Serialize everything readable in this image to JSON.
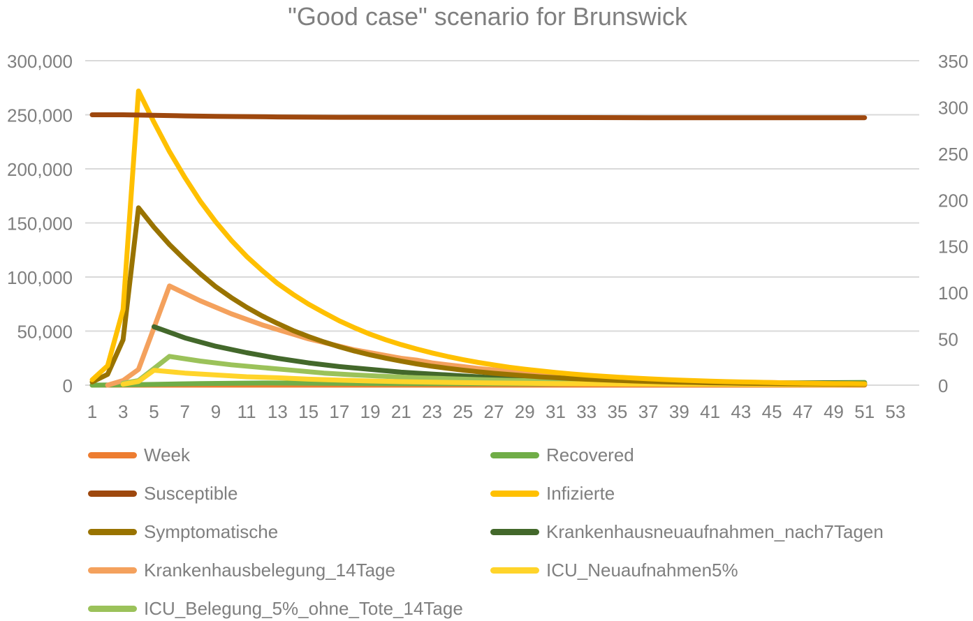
{
  "chart_data": {
    "type": "line",
    "title": "\"Good case\" scenario for Brunswick",
    "x_ticks": [
      "1",
      "3",
      "5",
      "7",
      "9",
      "11",
      "13",
      "15",
      "17",
      "19",
      "21",
      "23",
      "25",
      "27",
      "29",
      "31",
      "33",
      "35",
      "37",
      "39",
      "41",
      "43",
      "45",
      "47",
      "49",
      "51",
      "53"
    ],
    "x_range": [
      1,
      53
    ],
    "y_left": {
      "min": 0,
      "max": 300000,
      "ticks": [
        "0",
        "50,000",
        "100,000",
        "150,000",
        "200,000",
        "250,000",
        "300,000"
      ]
    },
    "y_right": {
      "min": 0,
      "max": 350,
      "ticks": [
        "0",
        "50",
        "100",
        "150",
        "200",
        "250",
        "300",
        "350"
      ]
    },
    "grid": true,
    "legend_position": "bottom",
    "series": [
      {
        "name": "Week",
        "color": "#ed7d31",
        "axis": "left",
        "x": [
          1,
          51
        ],
        "y": [
          0,
          0
        ]
      },
      {
        "name": "Recovered",
        "color": "#70ad47",
        "axis": "left",
        "x": [
          1,
          4,
          8,
          12,
          20,
          30,
          40,
          51
        ],
        "y": [
          0,
          500,
          1500,
          2000,
          1500,
          1200,
          1500,
          2500
        ]
      },
      {
        "name": "Susceptible",
        "color": "#9e480e",
        "axis": "left",
        "x": [
          1,
          3,
          5,
          7,
          9,
          11,
          13,
          17,
          21,
          25,
          29,
          33,
          37,
          41,
          45,
          49,
          51
        ],
        "y": [
          250000,
          250000,
          249500,
          249000,
          248600,
          248300,
          248000,
          247700,
          247600,
          247500,
          247500,
          247400,
          247300,
          247300,
          247300,
          247300,
          247300
        ]
      },
      {
        "name": "Infizierte",
        "color": "#ffc000",
        "axis": "left",
        "x": [
          1,
          2,
          3,
          4,
          5,
          6,
          7,
          8,
          9,
          10,
          11,
          12,
          13,
          14,
          15,
          16,
          17,
          18,
          19,
          20,
          21,
          22,
          23,
          24,
          25,
          26,
          27,
          28,
          29,
          30,
          31,
          32,
          33,
          34,
          35,
          36,
          37,
          38,
          39,
          40,
          41,
          42,
          43,
          44,
          45,
          46,
          47,
          48,
          49,
          50,
          51
        ],
        "y": [
          5000,
          18000,
          70000,
          272000,
          243000,
          216000,
          192000,
          170000,
          151000,
          134000,
          119000,
          106000,
          94000,
          84000,
          75000,
          67000,
          59500,
          53000,
          47000,
          42000,
          37500,
          33500,
          29800,
          26500,
          23600,
          21000,
          18700,
          16600,
          14800,
          13200,
          11700,
          10400,
          9300,
          8300,
          7400,
          6600,
          5900,
          5200,
          4700,
          4200,
          3700,
          3300,
          3000,
          2700,
          2400,
          2100,
          1900,
          1700,
          1500,
          1400,
          1300
        ]
      },
      {
        "name": "Symptomatische",
        "color": "#997300",
        "axis": "left",
        "x": [
          1,
          2,
          3,
          4,
          5,
          6,
          7,
          8,
          9,
          10,
          11,
          12,
          13,
          14,
          15,
          16,
          17,
          18,
          19,
          20,
          21,
          22,
          23,
          24,
          25,
          26,
          27,
          28,
          29,
          30,
          31,
          32,
          33,
          34,
          35,
          36,
          37,
          38,
          39,
          40,
          41,
          42,
          43,
          44,
          45,
          46,
          47,
          48,
          49,
          50,
          51
        ],
        "y": [
          3000,
          10000,
          42000,
          164000,
          146000,
          130000,
          116000,
          103000,
          91000,
          81000,
          72000,
          64000,
          57000,
          50500,
          45000,
          40000,
          35500,
          31500,
          28000,
          25000,
          22200,
          19700,
          17500,
          15600,
          13900,
          12400,
          11000,
          9800,
          8700,
          7700,
          6900,
          6100,
          5500,
          4900,
          4400,
          3900,
          3500,
          3100,
          2800,
          2500,
          2200,
          2000,
          1800,
          1600,
          1400,
          1300,
          1200,
          1100,
          1000,
          900,
          800
        ]
      },
      {
        "name": "Krankenhausneuaufnahmen_nach7Tagen",
        "color": "#43682b",
        "axis": "right",
        "x": [
          5,
          7,
          9,
          11,
          13,
          15,
          17,
          19,
          21,
          23,
          25,
          27,
          29,
          31,
          33,
          35,
          37,
          39,
          41,
          43,
          45,
          47,
          49,
          51
        ],
        "y": [
          63,
          51,
          42,
          35,
          29,
          24,
          20,
          17,
          14,
          12,
          10,
          8,
          7,
          6,
          5,
          4.5,
          4,
          3.5,
          3,
          3,
          2.5,
          2.5,
          2.5,
          2
        ]
      },
      {
        "name": "Krankenhausbelegung_14Tage",
        "color": "#f4a15d",
        "axis": "right",
        "x": [
          2,
          3,
          4,
          5,
          6,
          7,
          8,
          9,
          10,
          11,
          12,
          13,
          14,
          15,
          16,
          17,
          18,
          19,
          20,
          21,
          22,
          23,
          24,
          25,
          26,
          27,
          28,
          29,
          30,
          31,
          32,
          33,
          34,
          35,
          36,
          37,
          38,
          39,
          40,
          41,
          42,
          43,
          44,
          45,
          46,
          47,
          48,
          49,
          50,
          51
        ],
        "y": [
          0,
          5,
          17,
          62,
          107,
          99,
          91,
          84,
          77,
          71,
          65,
          60,
          55,
          50,
          46,
          42,
          38,
          35,
          32,
          29,
          27,
          24,
          22,
          20,
          18,
          16.5,
          15,
          13.5,
          12,
          11,
          10,
          9,
          8,
          7.5,
          7,
          6,
          5.5,
          5,
          4.5,
          4,
          3.5,
          3.2,
          3,
          2.8,
          2.5,
          2.2,
          2,
          1.8,
          1.6,
          1.5
        ]
      },
      {
        "name": "ICU_Neuaufnahmen5%",
        "color": "#ffd42a",
        "axis": "right",
        "x": [
          3,
          4,
          5,
          7,
          9,
          11,
          13,
          15,
          17,
          19,
          21,
          23,
          25,
          27,
          29,
          31,
          33,
          35,
          37,
          39,
          41,
          43,
          45,
          47,
          49,
          51
        ],
        "y": [
          1,
          4,
          16,
          13,
          11,
          9,
          8,
          6.5,
          5.5,
          4.5,
          3.8,
          3.2,
          2.7,
          2.3,
          2,
          1.7,
          1.5,
          1.3,
          1.1,
          1,
          0.9,
          0.8,
          0.7,
          0.6,
          0.5,
          0.5
        ]
      },
      {
        "name": "ICU_Belegung_5%_ohne_Tote_14Tage",
        "color": "#9bc25a",
        "axis": "right",
        "x": [
          3,
          4,
          5,
          6,
          8,
          10,
          12,
          14,
          16,
          18,
          20,
          22,
          24,
          26,
          28,
          30,
          32,
          34,
          36,
          38,
          40,
          42,
          44,
          46,
          48,
          51
        ],
        "y": [
          2,
          5,
          18,
          31,
          26,
          22,
          19,
          16,
          13,
          11,
          9.5,
          8,
          7,
          6,
          5.2,
          4.5,
          4,
          3.5,
          3,
          2.8,
          2.6,
          2.4,
          2.2,
          2,
          1.8,
          1.6
        ]
      }
    ]
  }
}
